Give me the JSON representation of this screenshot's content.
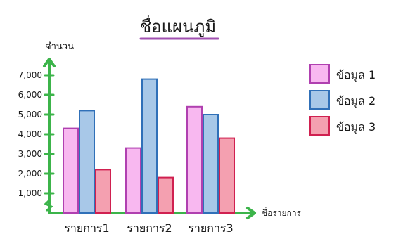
{
  "chart_data": {
    "type": "bar",
    "title": "ชื่อแผนภูมิ",
    "xlabel": "ชื่อรายการ",
    "ylabel": "จำนวน",
    "categories": [
      "รายการ1",
      "รายการ2",
      "รายการ3"
    ],
    "yticks": [
      "1,000",
      "2,000",
      "3,000",
      "4,000",
      "5,000",
      "6,000",
      "7,000"
    ],
    "ylim": [
      0,
      7000
    ],
    "grid": false,
    "legend_position": "right",
    "series": [
      {
        "name": "ข้อมูล 1",
        "values": [
          4300,
          3300,
          5400
        ],
        "color": "#f8b8f0",
        "stroke": "#b040b0"
      },
      {
        "name": "ข้อมูล 2",
        "values": [
          5200,
          6800,
          5000
        ],
        "color": "#a8c8e8",
        "stroke": "#3070b8"
      },
      {
        "name": "ข้อมูล 3",
        "values": [
          2200,
          1800,
          3800
        ],
        "color": "#f4a0b0",
        "stroke": "#d02050"
      }
    ]
  },
  "colors": {
    "axis": "#3cb44a",
    "title_underline": "#a050b0"
  }
}
